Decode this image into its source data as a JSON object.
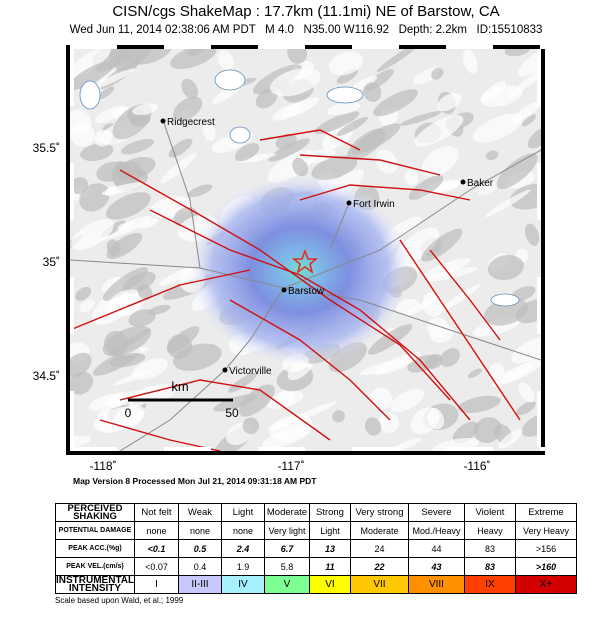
{
  "header": {
    "title": "CISN/cgs ShakeMap : 17.7km (11.1mi) NE of Barstow, CA",
    "subtitle": "Wed Jun 11, 2014 02:38:06 AM PDT   M 4.0   N35.00 W116.92   Depth: 2.2km   ID:15510833"
  },
  "map": {
    "lat_labels": [
      "35.5˚",
      "35˚",
      "34.5˚"
    ],
    "lon_labels": [
      "-118˚",
      "-117˚",
      "-116˚"
    ],
    "places": [
      "Ridgecrest",
      "Baker",
      "Fort Irwin",
      "Barstow",
      "Victorville"
    ],
    "scale": {
      "unit": "km",
      "ticks": [
        "0",
        "50"
      ]
    }
  },
  "footer_note": "Map Version 8 Processed Mon Jul 21, 2014 09:31:18 AM PDT",
  "table": {
    "rows": [
      [
        "PERCEIVED SHAKING",
        "Not felt",
        "Weak",
        "Light",
        "Moderate",
        "Strong",
        "Very strong",
        "Severe",
        "Violent",
        "Extreme"
      ],
      [
        "POTENTIAL DAMAGE",
        "none",
        "none",
        "none",
        "Very light",
        "Light",
        "Moderate",
        "Mod./Heavy",
        "Heavy",
        "Very Heavy"
      ],
      [
        "PEAK ACC.(%g)",
        "<0.1",
        "0.5",
        "2.4",
        "6.7",
        "13",
        "24",
        "44",
        "83",
        ">156"
      ],
      [
        "PEAK VEL.(cm/s)",
        "<0.07",
        "0.4",
        "1.9",
        "5.8",
        "11",
        "22",
        "43",
        "83",
        ">160"
      ],
      [
        "INSTRUMENTAL INTENSITY",
        "I",
        "II-III",
        "IV",
        "V",
        "VI",
        "VII",
        "VIII",
        "IX",
        "X+"
      ]
    ]
  },
  "citation": "Scale based upon Wald, et al.; 1999"
}
